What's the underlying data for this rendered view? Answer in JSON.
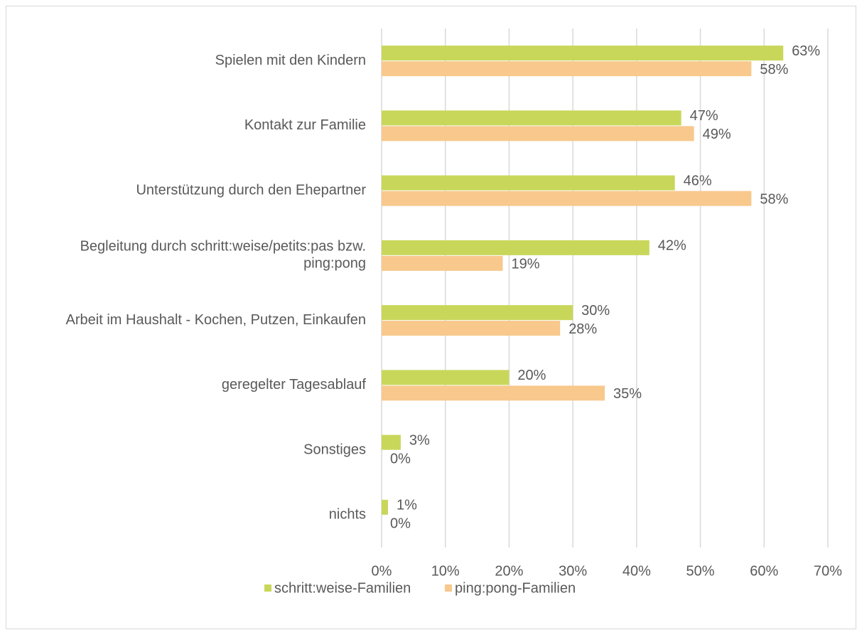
{
  "chart_data": {
    "type": "bar",
    "orientation": "horizontal",
    "categories": [
      "Spielen mit den Kindern",
      "Kontakt zur Familie",
      "Unterstützung durch den Ehepartner",
      "Begleitung durch schritt:weise/petits:pas bzw. ping:pong",
      "Arbeit im Haushalt - Kochen, Putzen, Einkaufen",
      "geregelter Tagesablauf",
      "Sonstiges",
      "nichts"
    ],
    "series": [
      {
        "name": "schritt:weise-Familien",
        "color": "#c8d75a",
        "values": [
          63,
          47,
          46,
          42,
          30,
          20,
          3,
          1
        ],
        "value_labels": [
          "63%",
          "47%",
          "46%",
          "42%",
          "30%",
          "20%",
          "3%",
          "1%"
        ]
      },
      {
        "name": "ping:pong-Familien",
        "color": "#f8c88c",
        "values": [
          58,
          49,
          58,
          19,
          28,
          35,
          0,
          0
        ],
        "value_labels": [
          "58%",
          "49%",
          "58%",
          "19%",
          "28%",
          "35%",
          "0%",
          "0%"
        ]
      }
    ],
    "xlim": [
      0,
      70
    ],
    "xticks": [
      {
        "value": 0,
        "label": "0%"
      },
      {
        "value": 10,
        "label": "10%"
      },
      {
        "value": 20,
        "label": "20%"
      },
      {
        "value": 30,
        "label": "30%"
      },
      {
        "value": 40,
        "label": "40%"
      },
      {
        "value": 50,
        "label": "50%"
      },
      {
        "value": 60,
        "label": "60%"
      },
      {
        "value": 70,
        "label": "70%"
      }
    ],
    "grid": true,
    "legend": "bottom"
  }
}
